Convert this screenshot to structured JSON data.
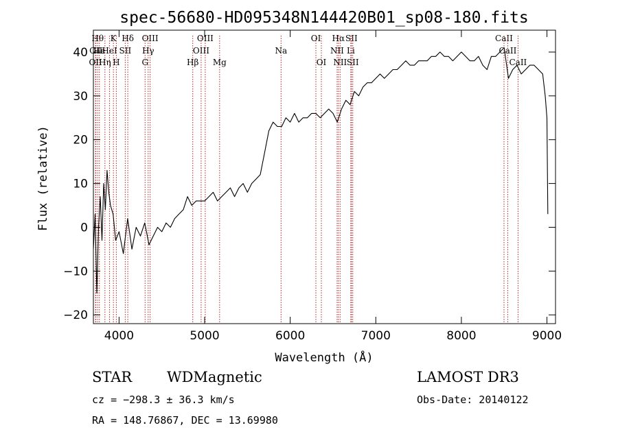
{
  "chart_data": {
    "type": "line",
    "title": "spec-56680-HD095348N144420B01_sp08-180.fits",
    "xlabel": "Wavelength (Å)",
    "ylabel": "Flux (relative)",
    "xlim": [
      3700,
      9100
    ],
    "ylim": [
      -22,
      45
    ],
    "xticks": [
      4000,
      5000,
      6000,
      7000,
      8000,
      9000
    ],
    "yticks": [
      -20,
      -10,
      0,
      10,
      20,
      30,
      40
    ],
    "grid": false,
    "line_color": "#000000",
    "marker_color": "#b22222",
    "series": [
      {
        "x": [
          3700,
          3720,
          3740,
          3760,
          3780,
          3800,
          3820,
          3840,
          3860,
          3880,
          3900,
          3930,
          3960,
          4000,
          4050,
          4100,
          4150,
          4200,
          4250,
          4300,
          4350,
          4400,
          4450,
          4500,
          4550,
          4600,
          4650,
          4700,
          4750,
          4800,
          4850,
          4900,
          4950,
          5000,
          5050,
          5100,
          5150,
          5200,
          5250,
          5300,
          5350,
          5400,
          5450,
          5500,
          5550,
          5600,
          5650,
          5700,
          5750,
          5800,
          5850,
          5900,
          5950,
          6000,
          6050,
          6100,
          6150,
          6200,
          6250,
          6300,
          6350,
          6400,
          6450,
          6500,
          6550,
          6600,
          6650,
          6700,
          6750,
          6800,
          6850,
          6900,
          6950,
          7000,
          7050,
          7100,
          7150,
          7200,
          7250,
          7300,
          7350,
          7400,
          7450,
          7500,
          7550,
          7600,
          7650,
          7700,
          7750,
          7800,
          7850,
          7900,
          7950,
          8000,
          8050,
          8100,
          8150,
          8200,
          8250,
          8300,
          8350,
          8400,
          8450,
          8500,
          8550,
          8600,
          8650,
          8700,
          8750,
          8800,
          8850,
          8900,
          8950,
          8980,
          9000,
          9010
        ],
        "values": [
          -5,
          3,
          -15,
          0,
          7,
          -3,
          10,
          4,
          13,
          8,
          5,
          3,
          -3,
          -1,
          -6,
          2,
          -5,
          0,
          -2,
          1,
          -4,
          -2,
          0,
          -1,
          1,
          0,
          2,
          3,
          4,
          7,
          5,
          6,
          6,
          6,
          7,
          8,
          6,
          7,
          8,
          9,
          7,
          9,
          10,
          8,
          10,
          11,
          12,
          17,
          22,
          24,
          23,
          23,
          25,
          24,
          26,
          24,
          25,
          25,
          26,
          26,
          25,
          26,
          27,
          26,
          24,
          27,
          29,
          28,
          31,
          30,
          32,
          33,
          33,
          34,
          35,
          34,
          35,
          36,
          36,
          37,
          38,
          37,
          37,
          38,
          38,
          38,
          39,
          39,
          40,
          39,
          39,
          38,
          39,
          40,
          39,
          38,
          38,
          39,
          37,
          36,
          39,
          39,
          40,
          41,
          34,
          36,
          37,
          35,
          36,
          37,
          37,
          36,
          35,
          30,
          25,
          3
        ]
      }
    ],
    "line_markers": [
      {
        "x": 3750,
        "label": "Hθ",
        "row": 0
      },
      {
        "x": 3730,
        "label": "OII",
        "row": 1
      },
      {
        "x": 3725,
        "label": "OII",
        "row": 2
      },
      {
        "x": 3770,
        "label": "He",
        "row": 1
      },
      {
        "x": 3835,
        "label": "Hη",
        "row": 2
      },
      {
        "x": 3889,
        "label": "HeI",
        "row": 1
      },
      {
        "x": 3934,
        "label": "K",
        "row": 0
      },
      {
        "x": 3968,
        "label": "H",
        "row": 2
      },
      {
        "x": 4072,
        "label": "SII",
        "row": 1
      },
      {
        "x": 4102,
        "label": "Hδ",
        "row": 0
      },
      {
        "x": 4304,
        "label": "G",
        "row": 2
      },
      {
        "x": 4340,
        "label": "Hγ",
        "row": 1
      },
      {
        "x": 4363,
        "label": "OIII",
        "row": 0
      },
      {
        "x": 4861,
        "label": "Hβ",
        "row": 2
      },
      {
        "x": 4959,
        "label": "OIII",
        "row": 1
      },
      {
        "x": 5007,
        "label": "OIII",
        "row": 0
      },
      {
        "x": 5175,
        "label": "Mg",
        "row": 2
      },
      {
        "x": 5893,
        "label": "Na",
        "row": 1
      },
      {
        "x": 6300,
        "label": "OI",
        "row": 0
      },
      {
        "x": 6364,
        "label": "OI",
        "row": 2
      },
      {
        "x": 6548,
        "label": "NII",
        "row": 1
      },
      {
        "x": 6563,
        "label": "Hα",
        "row": 0
      },
      {
        "x": 6583,
        "label": "NII",
        "row": 2
      },
      {
        "x": 6708,
        "label": "Li",
        "row": 1
      },
      {
        "x": 6716,
        "label": "SII",
        "row": 0
      },
      {
        "x": 6731,
        "label": "SII",
        "row": 2
      },
      {
        "x": 8498,
        "label": "CaII",
        "row": 0
      },
      {
        "x": 8542,
        "label": "CaII",
        "row": 1
      },
      {
        "x": 8662,
        "label": "CaII",
        "row": 2
      }
    ]
  },
  "info": {
    "class": "STAR",
    "subclass": "WDMagnetic",
    "survey": "LAMOST DR3",
    "cz": "cz = −298.3 ± 36.3 km/s",
    "obs_date": "Obs-Date: 20140122",
    "radec": "RA = 148.76867, DEC =  13.69980"
  }
}
